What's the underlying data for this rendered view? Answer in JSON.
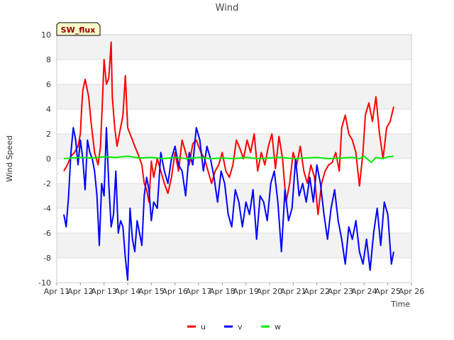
{
  "chart_data": {
    "type": "line",
    "title": "Wind",
    "xlabel": "Time",
    "ylabel": "Wind Speed",
    "site_label": "SW_flux",
    "ylim": [
      -10,
      10
    ],
    "yticks": [
      -10,
      -8,
      -6,
      -4,
      -2,
      0,
      2,
      4,
      6,
      8,
      10
    ],
    "xlim": [
      0,
      15
    ],
    "xticks": [
      {
        "x": 0,
        "label": "Apr 11"
      },
      {
        "x": 1,
        "label": "Apr 12"
      },
      {
        "x": 2,
        "label": "Apr 13"
      },
      {
        "x": 3,
        "label": "Apr 14"
      },
      {
        "x": 4,
        "label": "Apr 15"
      },
      {
        "x": 5,
        "label": "Apr 16"
      },
      {
        "x": 6,
        "label": "Apr 17"
      },
      {
        "x": 7,
        "label": "Apr 18"
      },
      {
        "x": 8,
        "label": "Apr 19"
      },
      {
        "x": 9,
        "label": "Apr 20"
      },
      {
        "x": 10,
        "label": "Apr 21"
      },
      {
        "x": 11,
        "label": "Apr 22"
      },
      {
        "x": 12,
        "label": "Apr 23"
      },
      {
        "x": 13,
        "label": "Apr 24"
      },
      {
        "x": 14,
        "label": "Apr 25"
      },
      {
        "x": 15,
        "label": "Apr 26"
      }
    ],
    "x_units": "days since Apr 11",
    "grid": true,
    "legend_position": "bottom-center",
    "series": [
      {
        "name": "u",
        "color": "#ff0000",
        "x": [
          0.3,
          0.45,
          0.6,
          0.75,
          0.9,
          1.0,
          1.05,
          1.1,
          1.2,
          1.35,
          1.45,
          1.6,
          1.75,
          1.85,
          1.95,
          2.0,
          2.1,
          2.2,
          2.3,
          2.35,
          2.45,
          2.55,
          2.65,
          2.75,
          2.8,
          2.9,
          3.0,
          3.1,
          3.2,
          3.3,
          3.45,
          3.6,
          3.7,
          3.8,
          3.9,
          4.0,
          4.1,
          4.25,
          4.4,
          4.55,
          4.7,
          4.85,
          5.0,
          5.15,
          5.3,
          5.45,
          5.6,
          5.75,
          5.9,
          6.0,
          6.1,
          6.25,
          6.4,
          6.55,
          6.7,
          6.85,
          7.0,
          7.15,
          7.3,
          7.45,
          7.6,
          7.75,
          7.9,
          8.05,
          8.2,
          8.35,
          8.5,
          8.65,
          8.8,
          8.95,
          9.1,
          9.25,
          9.4,
          9.55,
          9.7,
          9.85,
          10.0,
          10.15,
          10.3,
          10.45,
          10.6,
          10.75,
          10.9,
          11.05,
          11.2,
          11.35,
          11.5,
          11.65,
          11.8,
          11.95,
          12.05,
          12.2,
          12.35,
          12.5,
          12.65,
          12.8,
          12.95,
          13.05,
          13.2,
          13.35,
          13.5,
          13.65,
          13.8,
          13.95,
          14.1,
          14.25
        ],
        "values": [
          -1.0,
          -0.5,
          0.2,
          0.5,
          1.0,
          2.0,
          4.0,
          5.5,
          6.4,
          5.0,
          3.0,
          0.5,
          -0.5,
          1.0,
          5.5,
          8.0,
          6.0,
          6.5,
          9.4,
          5.0,
          2.5,
          1.0,
          2.0,
          3.0,
          3.5,
          6.7,
          2.5,
          2.0,
          1.5,
          1.0,
          0.3,
          -0.5,
          -2.0,
          -2.5,
          -3.5,
          -0.2,
          -1.5,
          0.0,
          -1.0,
          -2.0,
          -2.8,
          -1.5,
          0.5,
          -1.0,
          1.5,
          0.5,
          -0.5,
          1.2,
          1.5,
          1.0,
          0.5,
          0.0,
          -1.0,
          -2.0,
          -1.0,
          -0.5,
          0.5,
          -1.0,
          -1.5,
          -0.5,
          1.5,
          0.8,
          0.0,
          1.5,
          0.5,
          2.0,
          -1.0,
          0.5,
          -0.5,
          1.0,
          2.0,
          -0.8,
          1.8,
          0.0,
          -3.5,
          -2.0,
          0.5,
          -0.5,
          1.0,
          -1.0,
          -2.0,
          -0.5,
          -1.5,
          -4.5,
          -2.0,
          -1.0,
          -0.5,
          -0.3,
          0.5,
          -1.0,
          2.5,
          3.5,
          2.0,
          1.5,
          0.5,
          -2.2,
          0.5,
          3.5,
          4.5,
          3.0,
          5.0,
          2.0,
          0.0,
          2.5,
          3.0,
          4.2
        ]
      },
      {
        "name": "v",
        "color": "#0000ff",
        "x": [
          0.3,
          0.4,
          0.5,
          0.6,
          0.7,
          0.8,
          0.9,
          1.0,
          1.1,
          1.2,
          1.3,
          1.4,
          1.5,
          1.6,
          1.7,
          1.8,
          1.9,
          2.0,
          2.1,
          2.2,
          2.3,
          2.4,
          2.5,
          2.6,
          2.7,
          2.8,
          2.9,
          3.0,
          3.1,
          3.2,
          3.3,
          3.4,
          3.5,
          3.6,
          3.7,
          3.8,
          3.9,
          4.0,
          4.1,
          4.25,
          4.4,
          4.55,
          4.7,
          4.85,
          5.0,
          5.15,
          5.3,
          5.45,
          5.6,
          5.75,
          5.9,
          6.05,
          6.2,
          6.35,
          6.5,
          6.65,
          6.8,
          6.95,
          7.1,
          7.25,
          7.4,
          7.55,
          7.7,
          7.85,
          8.0,
          8.15,
          8.3,
          8.45,
          8.6,
          8.75,
          8.9,
          9.05,
          9.2,
          9.35,
          9.5,
          9.65,
          9.8,
          9.95,
          10.1,
          10.25,
          10.4,
          10.55,
          10.7,
          10.85,
          11.0,
          11.15,
          11.3,
          11.45,
          11.6,
          11.75,
          11.9,
          12.05,
          12.2,
          12.35,
          12.5,
          12.65,
          12.8,
          12.95,
          13.1,
          13.25,
          13.4,
          13.55,
          13.7,
          13.85,
          14.0,
          14.15,
          14.25
        ],
        "values": [
          -4.5,
          -5.5,
          -3.0,
          0.5,
          2.5,
          1.5,
          -0.5,
          1.5,
          0.0,
          -2.5,
          1.5,
          0.5,
          0.0,
          -1.0,
          -3.0,
          -7.0,
          -2.0,
          -3.0,
          2.5,
          -2.0,
          -5.5,
          -4.5,
          -1.0,
          -6.0,
          -5.0,
          -5.5,
          -8.0,
          -9.8,
          -4.0,
          -6.5,
          -7.5,
          -5.0,
          -6.0,
          -7.0,
          -3.0,
          -1.5,
          -2.5,
          -5.0,
          -3.5,
          -4.0,
          0.5,
          -1.0,
          -2.0,
          0.0,
          1.0,
          -0.5,
          -1.0,
          -3.0,
          0.5,
          -0.5,
          2.5,
          1.5,
          -1.0,
          1.0,
          0.0,
          -1.5,
          -3.5,
          -1.0,
          -2.0,
          -4.5,
          -5.5,
          -2.5,
          -3.5,
          -5.5,
          -3.5,
          -4.5,
          -2.5,
          -6.5,
          -3.0,
          -3.5,
          -5.0,
          -2.0,
          -1.0,
          -3.5,
          -7.5,
          -2.5,
          -5.0,
          -4.0,
          0.0,
          -3.0,
          -2.0,
          -3.5,
          -1.5,
          -3.5,
          -0.5,
          -2.0,
          -4.5,
          -6.5,
          -4.0,
          -2.5,
          -5.0,
          -6.5,
          -8.5,
          -5.5,
          -6.5,
          -5.0,
          -7.5,
          -8.5,
          -6.5,
          -9.0,
          -6.0,
          -4.0,
          -7.0,
          -3.5,
          -4.5,
          -8.5,
          -7.5
        ]
      },
      {
        "name": "w",
        "color": "#00ee00",
        "x": [
          0.3,
          1.0,
          1.5,
          2.0,
          2.5,
          3.0,
          3.5,
          4.0,
          4.5,
          5.0,
          5.5,
          6.0,
          6.5,
          7.0,
          7.5,
          8.0,
          8.5,
          9.0,
          9.5,
          10.0,
          10.5,
          11.0,
          11.5,
          12.0,
          12.5,
          12.8,
          13.0,
          13.3,
          13.5,
          13.8,
          14.0,
          14.25
        ],
        "values": [
          0.0,
          0.1,
          0.05,
          0.15,
          0.1,
          0.2,
          0.05,
          0.1,
          0.0,
          0.1,
          0.0,
          0.1,
          0.0,
          0.05,
          0.0,
          0.1,
          0.0,
          0.05,
          0.1,
          0.0,
          0.05,
          0.1,
          0.0,
          0.05,
          0.1,
          0.0,
          0.2,
          -0.3,
          0.1,
          0.0,
          0.15,
          0.2
        ]
      }
    ]
  }
}
